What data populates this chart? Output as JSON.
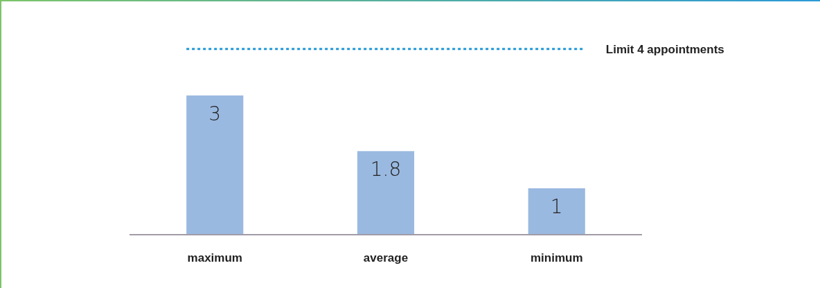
{
  "chart_data": {
    "type": "bar",
    "categories": [
      "maximum",
      "average",
      "minimum"
    ],
    "values": [
      3,
      1.8,
      1
    ],
    "color": "#9ab9e0",
    "data_labels": true,
    "ref_lines": [
      {
        "axis": "y",
        "value": 4,
        "label": "Limit 4 appointments",
        "color": "#1f97d8",
        "line_style": "dotted"
      }
    ]
  }
}
